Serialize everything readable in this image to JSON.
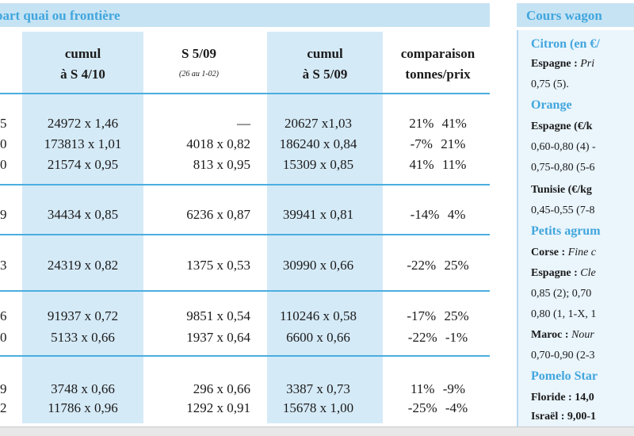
{
  "left_table": {
    "title": "part quai ou frontière",
    "headers": {
      "stub_fragment": ")",
      "cumul_410": [
        "cumul",
        "à S 4/10"
      ],
      "s509": [
        "S 5/09",
        "(26 au 1-02)"
      ],
      "cumul_509": [
        "cumul",
        "à S 5/09"
      ],
      "comparaison": [
        "comparaison",
        "tonnes/prix"
      ]
    },
    "groups": [
      {
        "rows": [
          {
            "stub": "5",
            "cumul_410": "24972 x 1,46",
            "s509": "—",
            "cumul_509": "20627 x1,03",
            "comparaison": "21% 41%"
          },
          {
            "stub": "0",
            "cumul_410": "173813 x 1,01",
            "s509": "4018 x 0,82",
            "cumul_509": "186240 x 0,84",
            "comparaison": "-7% 21%"
          },
          {
            "stub": "0",
            "cumul_410": "21574 x 0,95",
            "s509": "813 x 0,95",
            "cumul_509": "15309 x 0,85",
            "comparaison": "41% 11%"
          }
        ]
      },
      {
        "rows": [
          {
            "stub": "9",
            "cumul_410": "34434 x 0,85",
            "s509": "6236 x 0,87",
            "cumul_509": "39941 x 0,81",
            "comparaison": "-14% 4%"
          }
        ]
      },
      {
        "rows": [
          {
            "stub": "3",
            "cumul_410": "24319 x 0,82",
            "s509": "1375 x 0,53",
            "cumul_509": "30990 x 0,66",
            "comparaison": "-22% 25%"
          }
        ]
      },
      {
        "rows": [
          {
            "stub": "6",
            "cumul_410": "91937 x 0,72",
            "s509": "9851 x 0,54",
            "cumul_509": "110246 x 0,58",
            "comparaison": "-17% 25%"
          },
          {
            "stub": "0",
            "cumul_410": "5133 x 0,66",
            "s509": "1937 x 0,64",
            "cumul_509": "6600 x 0,66",
            "comparaison": "-22% -1%"
          }
        ]
      },
      {
        "rows": [
          {
            "stub": "9",
            "cumul_410": "3748 x 0,66",
            "s509": "296 x 0,66",
            "cumul_509": "3387 x 0,73",
            "comparaison": "11% -9%"
          },
          {
            "stub": "2",
            "cumul_410": "11786 x 0,96",
            "s509": "1292 x 0,91",
            "cumul_509": "15678 x 1,00",
            "comparaison": "-25% -4%"
          }
        ]
      }
    ]
  },
  "right_panel": {
    "title": "Cours wagon",
    "lines": [
      {
        "style": "head",
        "text": "Citron (en €/"
      },
      {
        "style": "mixed",
        "bold": "Espagne :",
        "italic": " Pri"
      },
      {
        "style": "plain",
        "text": "0,75 (5)."
      },
      {
        "style": "head",
        "text": "Orange"
      },
      {
        "style": "bold",
        "text": "Espagne (€/k"
      },
      {
        "style": "plain",
        "text": "0,60-0,80 (4) -"
      },
      {
        "style": "plain",
        "text": "0,75-0,80 (5-6"
      },
      {
        "style": "bold",
        "text": "Tunisie (€/kg"
      },
      {
        "style": "plain",
        "text": "0,45-0,55 (7-8"
      },
      {
        "style": "head",
        "text": "Petits agrum"
      },
      {
        "style": "mixed",
        "bold": "Corse :",
        "italic": " Fine c"
      },
      {
        "style": "mixed",
        "bold": "Espagne :",
        "italic": " Cle"
      },
      {
        "style": "plain",
        "text": "0,85 (2); 0,70"
      },
      {
        "style": "plain",
        "text": "0,80 (1, 1-X, 1"
      },
      {
        "style": "mixed",
        "bold": "Maroc :",
        "italic": " Nour"
      },
      {
        "style": "plain",
        "text": "0,70-0,90 (2-3"
      },
      {
        "style": "head",
        "text": "Pomelo Star"
      },
      {
        "style": "bold",
        "text": "Floride : 14,0"
      },
      {
        "style": "bold",
        "text": "Israël : 9,00-1"
      }
    ]
  },
  "colors": {
    "accent": "#41a6dd",
    "banner_bg": "#c6e3f4",
    "column_shade": "#d5eaf7",
    "rule": "#4aaee0"
  }
}
